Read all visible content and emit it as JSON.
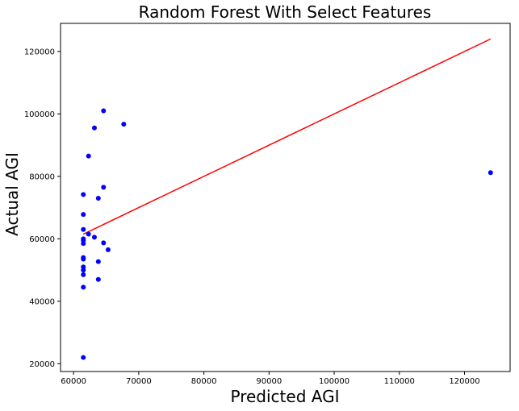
{
  "chart_data": {
    "type": "scatter",
    "title": "Random Forest With Select Features",
    "xlabel": "Predicted AGI",
    "ylabel": "Actual AGI",
    "xlim": [
      58000,
      127000
    ],
    "ylim": [
      17500,
      129000
    ],
    "x_ticks": [
      60000,
      70000,
      80000,
      90000,
      100000,
      110000,
      120000
    ],
    "y_ticks": [
      20000,
      40000,
      60000,
      80000,
      100000,
      120000
    ],
    "grid": false,
    "colors": {
      "points": "#0000ff",
      "line": "#ff0000"
    },
    "line": {
      "x": [
        61500,
        124000
      ],
      "y": [
        61500,
        124000
      ]
    },
    "points": [
      {
        "x": 61500,
        "y": 22000
      },
      {
        "x": 61500,
        "y": 44500
      },
      {
        "x": 61500,
        "y": 48500
      },
      {
        "x": 61500,
        "y": 50000
      },
      {
        "x": 61500,
        "y": 51000
      },
      {
        "x": 61500,
        "y": 53500
      },
      {
        "x": 61500,
        "y": 54000
      },
      {
        "x": 61500,
        "y": 58500
      },
      {
        "x": 61500,
        "y": 59500
      },
      {
        "x": 61500,
        "y": 60000
      },
      {
        "x": 61500,
        "y": 63000
      },
      {
        "x": 61500,
        "y": 67800
      },
      {
        "x": 61500,
        "y": 74200
      },
      {
        "x": 62300,
        "y": 86500
      },
      {
        "x": 62300,
        "y": 61500
      },
      {
        "x": 63200,
        "y": 95500
      },
      {
        "x": 63200,
        "y": 60500
      },
      {
        "x": 63800,
        "y": 73000
      },
      {
        "x": 63800,
        "y": 52700
      },
      {
        "x": 63800,
        "y": 47000
      },
      {
        "x": 64600,
        "y": 101000
      },
      {
        "x": 64600,
        "y": 76500
      },
      {
        "x": 64600,
        "y": 58700
      },
      {
        "x": 65300,
        "y": 56500
      },
      {
        "x": 67700,
        "y": 96700
      },
      {
        "x": 124000,
        "y": 81200
      }
    ]
  }
}
